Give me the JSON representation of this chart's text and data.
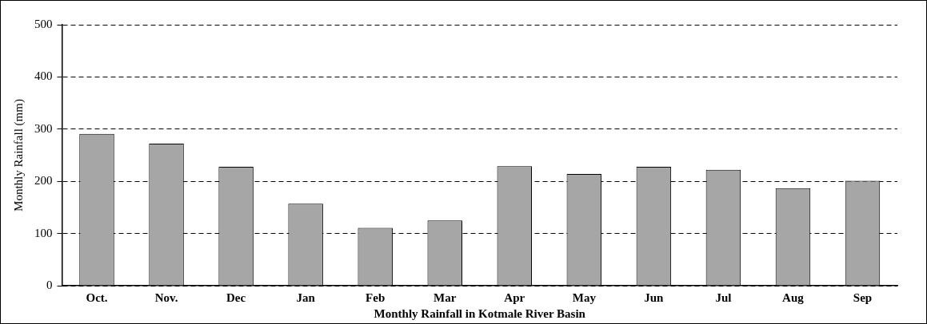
{
  "chart_data": {
    "type": "bar",
    "xlabel": "Monthly Rainfall in Kotmale River Basin",
    "ylabel": "Monthly Rainfall (mm)",
    "categories": [
      "Oct.",
      "Nov.",
      "Dec",
      "Jan",
      "Feb",
      "Mar",
      "Apr",
      "May",
      "Jun",
      "Jul",
      "Aug",
      "Sep"
    ],
    "values": [
      291,
      272,
      228,
      157,
      111,
      125,
      229,
      214,
      228,
      222,
      187,
      201
    ],
    "color": "#a6a6a6",
    "ylim": [
      0,
      500
    ],
    "yticks": [
      0,
      100,
      200,
      300,
      400,
      500
    ],
    "grid": "y"
  }
}
